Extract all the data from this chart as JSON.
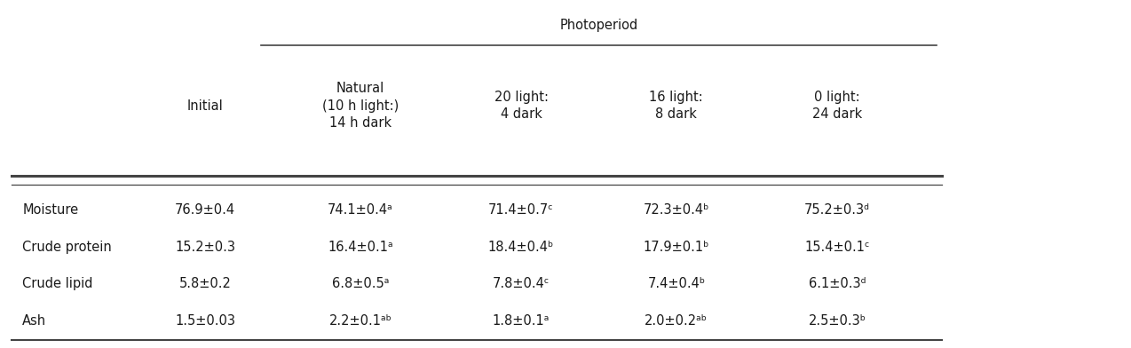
{
  "title": "Photoperiod",
  "col1_header": "Initial",
  "photo_headers": [
    "Natural\n(10 h light:)\n14 h dark",
    "20 light:\n4 dark",
    "16 light:\n8 dark",
    "0 light:\n24 dark"
  ],
  "rows": [
    {
      "label": "Moisture",
      "values": [
        "76.9±0.4",
        "74.1±0.4ᵃ",
        "71.4±0.7ᶜ",
        "72.3±0.4ᵇ",
        "75.2±0.3ᵈ"
      ]
    },
    {
      "label": "Crude protein",
      "values": [
        "15.2±0.3",
        "16.4±0.1ᵃ",
        "18.4±0.4ᵇ",
        "17.9±0.1ᵇ",
        "15.4±0.1ᶜ"
      ]
    },
    {
      "label": "Crude lipid",
      "values": [
        "5.8±0.2",
        "6.8±0.5ᵃ",
        "7.8±0.4ᶜ",
        "7.4±0.4ᵇ",
        "6.1±0.3ᵈ"
      ]
    },
    {
      "label": "Ash",
      "values": [
        "1.5±0.03",
        "2.2±0.1ᵃᵇ",
        "1.8±0.1ᵃ",
        "2.0±0.2ᵃᵇ",
        "2.5±0.3ᵇ"
      ]
    }
  ],
  "bg_color": "#ffffff",
  "text_color": "#1a1a1a",
  "line_color": "#444444",
  "font_size": 10.5,
  "header_font_size": 10.5,
  "figwidth": 12.74,
  "figheight": 3.92,
  "dpi": 100
}
